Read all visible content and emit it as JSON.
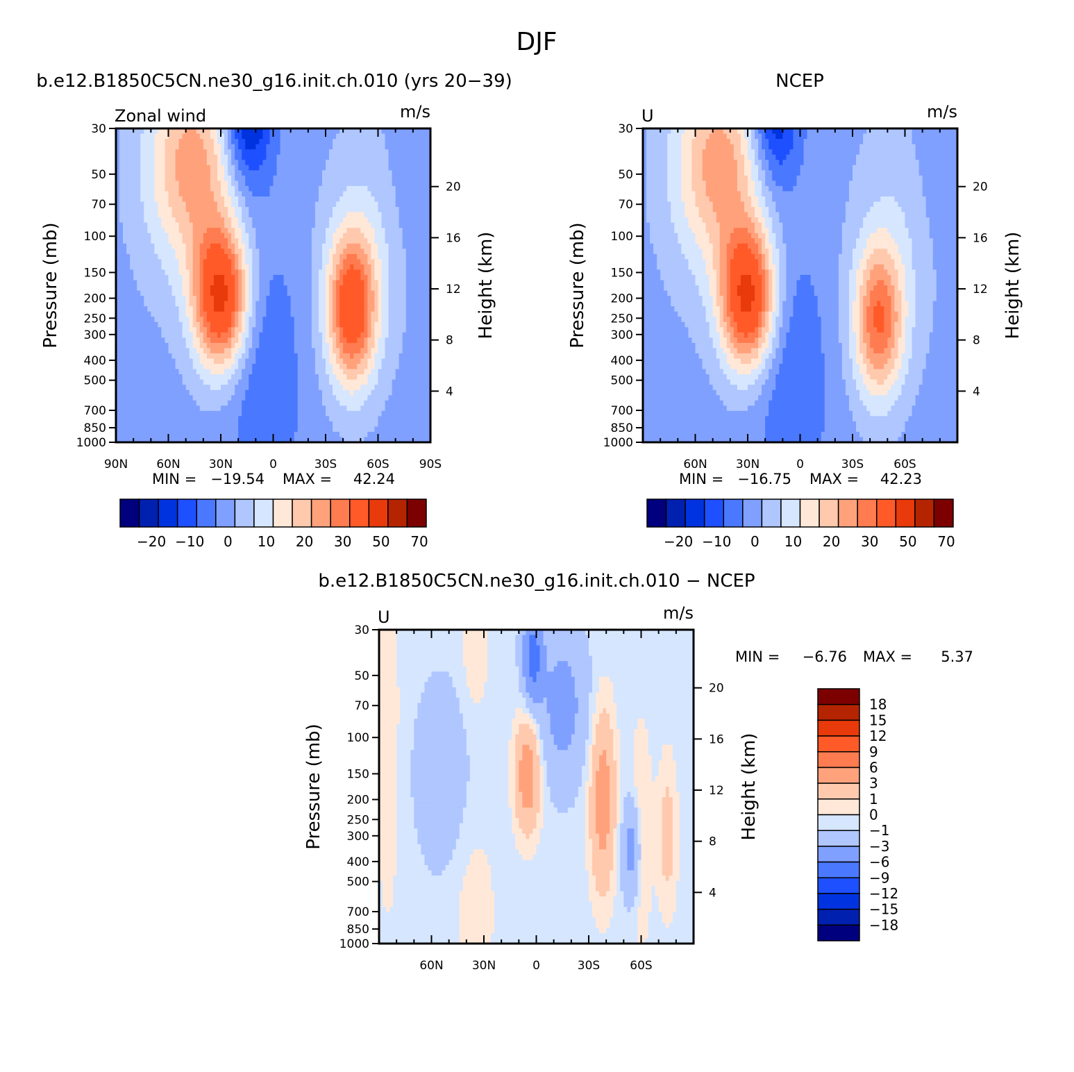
{
  "figure": {
    "title": "DJF",
    "min_label": "MIN =",
    "max_label": "MAX ="
  },
  "colors": {
    "main_scale": [
      "#00007f",
      "#0020b0",
      "#0033e0",
      "#1e50ff",
      "#4a78ff",
      "#7fa0ff",
      "#afc6ff",
      "#d6e6ff",
      "#ffe8d8",
      "#ffc9ae",
      "#ffa27c",
      "#ff7b50",
      "#ff5a28",
      "#e83a0a",
      "#b52400",
      "#7d0000"
    ],
    "diff_scale": [
      "#00007f",
      "#0020b0",
      "#0033e0",
      "#1e50ff",
      "#4a78ff",
      "#7fa0ff",
      "#afc6ff",
      "#d6e6ff",
      "#ffe8d8",
      "#ffc9ae",
      "#ffa27c",
      "#ff7b50",
      "#ff5a28",
      "#e83a0a",
      "#b52400",
      "#7d0000"
    ]
  },
  "chart_data": [
    {
      "type": "heatmap",
      "title": "b.e12.B1850C5CN.ne30_g16.init.ch.010 (yrs 20−39)",
      "left_label": "Zonal wind",
      "units": "m/s",
      "ylabel": "Pressure (mb)",
      "ylabel_right": "Height (km)",
      "x_tick_labels": [
        "90N",
        "60N",
        "30N",
        "0",
        "30S",
        "60S",
        "90S"
      ],
      "x_tick_values": [
        90,
        60,
        30,
        0,
        -30,
        -60,
        -90
      ],
      "xlim": [
        90,
        -90
      ],
      "y_tick_labels": [
        "30",
        "50",
        "70",
        "100",
        "150",
        "200",
        "250",
        "300",
        "400",
        "500",
        "700",
        "850",
        "1000"
      ],
      "y_tick_values": [
        30,
        50,
        70,
        100,
        150,
        200,
        250,
        300,
        400,
        500,
        700,
        850,
        1000
      ],
      "ylim": [
        1000,
        30
      ],
      "y_scale": "log",
      "height_tick_labels": [
        "4",
        "8",
        "12",
        "16",
        "20"
      ],
      "min": "−19.54",
      "max": "42.24",
      "colorbar_labels": [
        "−20",
        "−10",
        "0",
        "10",
        "20",
        "30",
        "50",
        "70"
      ],
      "features": [
        {
          "lat": 30,
          "p": 200,
          "peak": 42.24
        },
        {
          "lat": -45,
          "p": 225,
          "peak": 37
        },
        {
          "lat": 15,
          "p": 30,
          "peak": -19.54
        }
      ]
    },
    {
      "type": "heatmap",
      "title": "NCEP",
      "left_label": "U",
      "units": "m/s",
      "ylabel": "Pressure (mb)",
      "ylabel_right": "Height (km)",
      "x_tick_labels": [
        "60N",
        "30N",
        "0",
        "30S",
        "60S"
      ],
      "x_tick_values": [
        60,
        30,
        0,
        -30,
        -60
      ],
      "xlim": [
        90,
        -90
      ],
      "y_tick_labels": [
        "30",
        "50",
        "70",
        "100",
        "150",
        "200",
        "250",
        "300",
        "400",
        "500",
        "700",
        "850",
        "1000"
      ],
      "y_tick_values": [
        30,
        50,
        70,
        100,
        150,
        200,
        250,
        300,
        400,
        500,
        700,
        850,
        1000
      ],
      "ylim": [
        1000,
        30
      ],
      "y_scale": "log",
      "height_tick_labels": [
        "4",
        "8",
        "12",
        "16",
        "20"
      ],
      "min": "−16.75",
      "max": "42.23",
      "colorbar_labels": [
        "−20",
        "−10",
        "0",
        "10",
        "20",
        "30",
        "50",
        "70"
      ],
      "features": [
        {
          "lat": 30,
          "p": 200,
          "peak": 42.23
        },
        {
          "lat": -45,
          "p": 260,
          "peak": 30
        },
        {
          "lat": 15,
          "p": 30,
          "peak": -16.75
        }
      ]
    },
    {
      "type": "heatmap",
      "title": "b.e12.B1850C5CN.ne30_g16.init.ch.010 − NCEP",
      "left_label": "U",
      "units": "m/s",
      "ylabel": "Pressure (mb)",
      "ylabel_right": "Height (km)",
      "x_tick_labels": [
        "60N",
        "30N",
        "0",
        "30S",
        "60S"
      ],
      "x_tick_values": [
        60,
        30,
        0,
        -30,
        -60
      ],
      "xlim": [
        90,
        -90
      ],
      "y_tick_labels": [
        "30",
        "50",
        "70",
        "100",
        "150",
        "200",
        "250",
        "300",
        "400",
        "500",
        "700",
        "850",
        "1000"
      ],
      "y_tick_values": [
        30,
        50,
        70,
        100,
        150,
        200,
        250,
        300,
        400,
        500,
        700,
        850,
        1000
      ],
      "ylim": [
        1000,
        30
      ],
      "y_scale": "log",
      "height_tick_labels": [
        "4",
        "8",
        "12",
        "16",
        "20"
      ],
      "min": "−6.76",
      "max": "5.37",
      "colorbar_labels": [
        "18",
        "15",
        "12",
        "9",
        "6",
        "3",
        "1",
        "0",
        "−1",
        "−3",
        "−6",
        "−9",
        "−12",
        "−15",
        "−18"
      ],
      "features": [
        {
          "lat": 5,
          "p": 150,
          "peak": 5.37
        },
        {
          "lat": -38,
          "p": 200,
          "peak": 5
        },
        {
          "lat": 2,
          "p": 30,
          "peak": -6.76
        },
        {
          "lat": -60,
          "p": 300,
          "peak": 2
        }
      ]
    }
  ]
}
